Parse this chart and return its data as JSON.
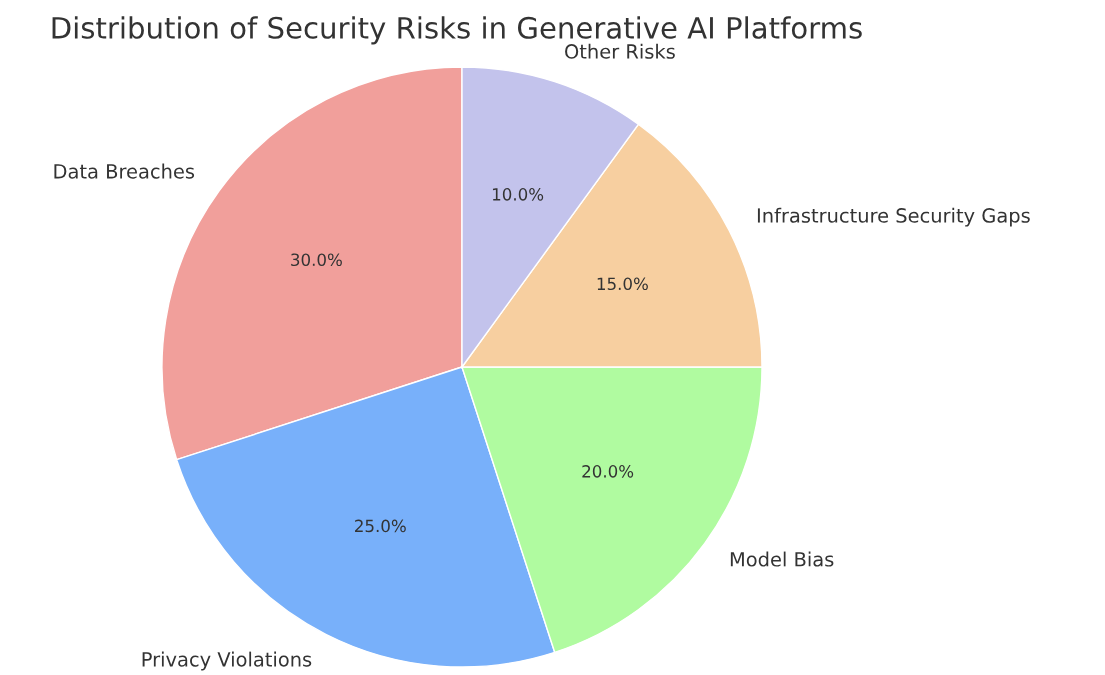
{
  "chart_data": {
    "type": "pie",
    "title": "Distribution of Security Risks in Generative AI Platforms",
    "categories": [
      "Data Breaches",
      "Privacy Violations",
      "Model Bias",
      "Infrastructure Security Gaps",
      "Other Risks"
    ],
    "values": [
      30,
      25,
      20,
      15,
      10
    ],
    "value_labels": [
      "30.0%",
      "25.0%",
      "20.0%",
      "15.0%",
      "10.0%"
    ],
    "colors": [
      "#f19f9b",
      "#78b0fa",
      "#b0fba0",
      "#f7cfa0",
      "#c3c3ec"
    ]
  }
}
